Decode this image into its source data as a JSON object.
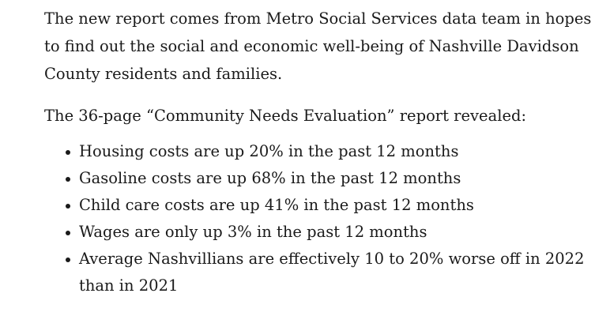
{
  "article": {
    "paragraphs": [
      "The new report comes from Metro Social Services data team in hopes to find out the social and economic well-being of Nashville Davidson County residents and families.",
      "The 36-page “Community Needs Evaluation” report revealed:"
    ],
    "bullets": [
      "Housing costs are up 20% in the past 12 months",
      "Gasoline costs are up 68% in the past 12 months",
      "Child care costs are up 41% in the past 12 months",
      "Wages are only up 3% in the past 12 months",
      "Average Nashvillians are effectively 10 to 20% worse off in 2022 than in 2021"
    ]
  }
}
